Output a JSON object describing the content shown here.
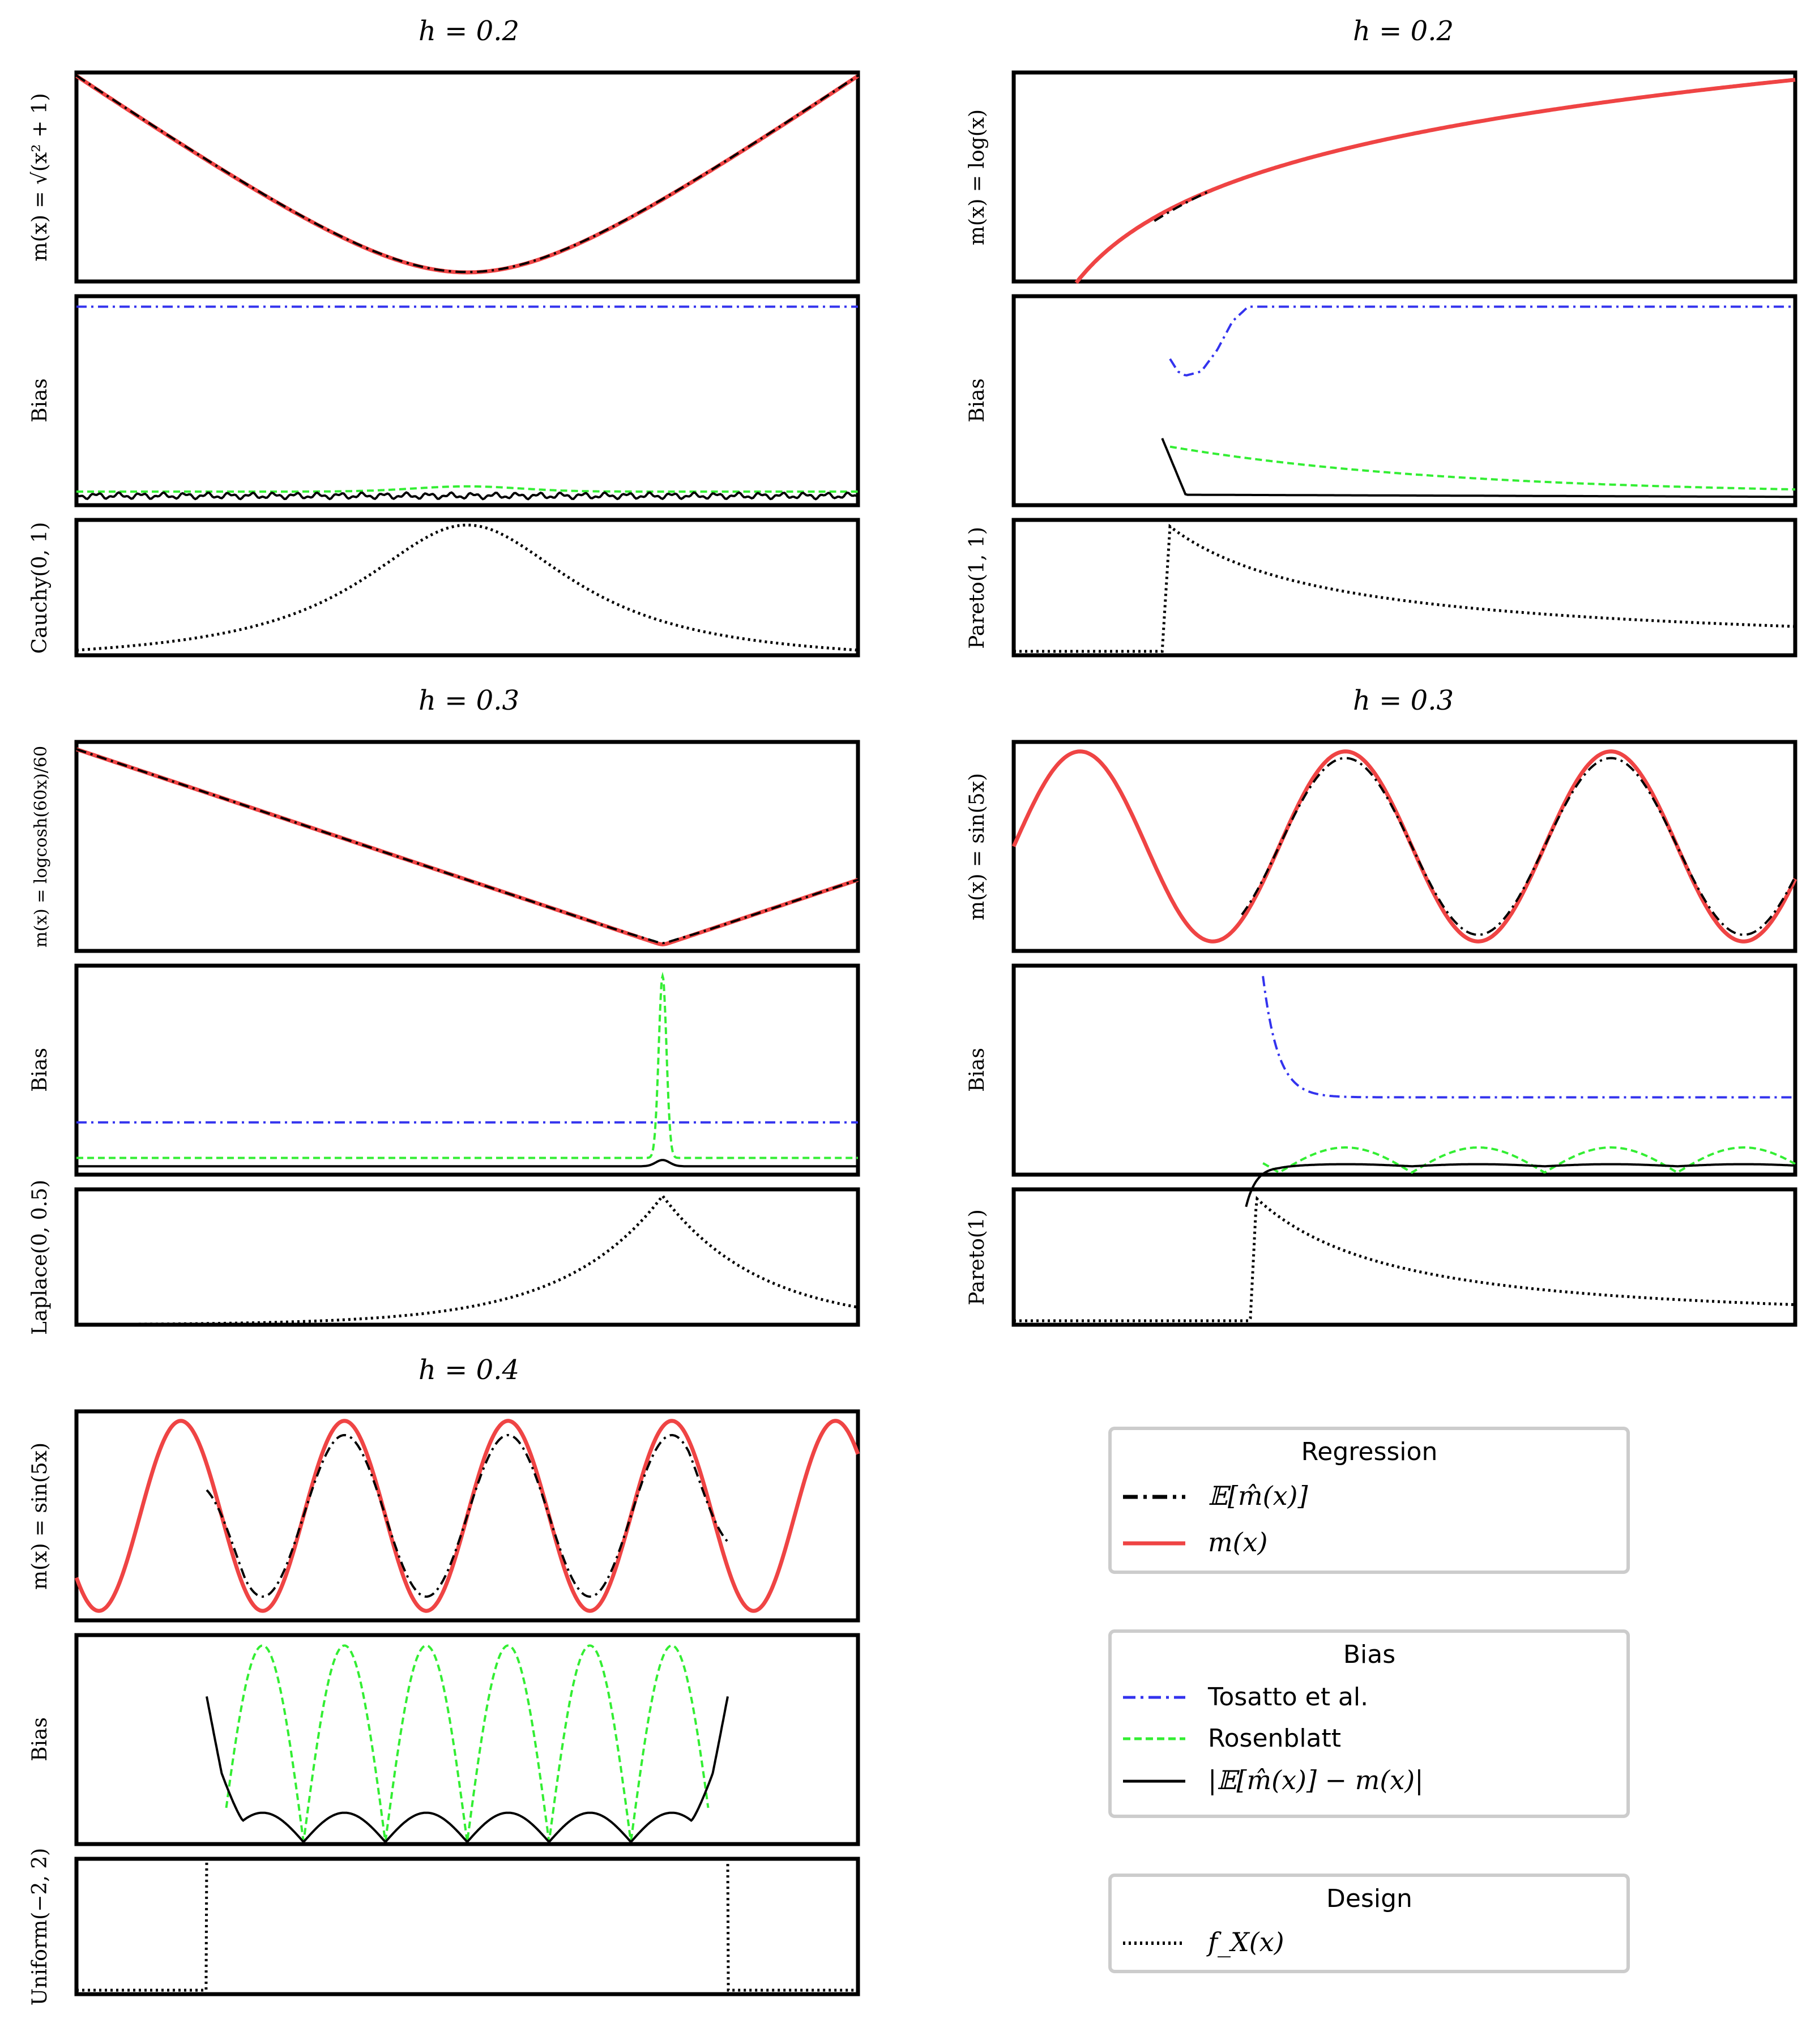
{
  "figure": {
    "description_note": "Grid of kernel regression bias plots"
  },
  "legends": [
    {
      "title": "Regression",
      "entries": [
        {
          "label": "𝔼[m̂(x)]",
          "style": "dashdot",
          "color": "#000000"
        },
        {
          "label": "m(x)",
          "style": "solid-red",
          "color": "#ef4444"
        }
      ]
    },
    {
      "title": "Bias",
      "entries": [
        {
          "label": "Tosatto et al.",
          "style": "dashdot-blue",
          "color": "#3333ee"
        },
        {
          "label": "Rosenblatt",
          "style": "dashed-green",
          "color": "#33ee33"
        },
        {
          "label": "|𝔼[m̂(x)] − m(x)|",
          "style": "solid-black",
          "color": "#000000"
        }
      ]
    },
    {
      "title": "Design",
      "entries": [
        {
          "label": "f_X(x)",
          "style": "dotted",
          "color": "#000000"
        }
      ]
    }
  ],
  "chart_data": [
    {
      "type": "line",
      "title": "h = 0.2",
      "ylabels": [
        "m(x) = √(x² + 1)",
        "Bias",
        "Cauchy(0, 1)"
      ],
      "xlim": [
        -3,
        3
      ],
      "regression": {
        "function": "sqrt(x^2+1)",
        "ylim": [
          0.9,
          3.2
        ],
        "estimate_note": "E[m̂(x)] overlaps m(x) over full range"
      },
      "bias": {
        "ylim": [
          0,
          1.0
        ],
        "tosatto": {
          "x": [
            -3,
            3
          ],
          "y": [
            0.95,
            0.95
          ]
        },
        "rosenblatt": {
          "x": [
            -3,
            -2,
            -1,
            0,
            1,
            2,
            3
          ],
          "y": [
            0.07,
            0.07,
            0.06,
            0.09,
            0.06,
            0.07,
            0.07
          ]
        },
        "abs_error": {
          "x": [
            -3,
            -2,
            -1,
            0,
            1,
            2,
            3
          ],
          "y": [
            0.04,
            0.05,
            0.04,
            0.05,
            0.04,
            0.04,
            0.05
          ]
        }
      },
      "design": {
        "density": "cauchy(0,1)",
        "xlim": [
          -3,
          3
        ]
      }
    },
    {
      "type": "line",
      "title": "h = 0.2",
      "ylabels": [
        "m(x) = log(x)",
        "Bias",
        "Pareto(1, 1)"
      ],
      "xlim": [
        0,
        5
      ],
      "regression": {
        "function": "log(x)",
        "ylim": [
          -0.9,
          1.7
        ],
        "estimate_range": [
          0.9,
          1.2
        ]
      },
      "bias": {
        "ylim": [
          0,
          1.0
        ],
        "tosatto": {
          "x": [
            1.0,
            1.05,
            1.1,
            1.2,
            1.3,
            1.4,
            1.5,
            5.0
          ],
          "y": [
            0.7,
            0.64,
            0.62,
            0.64,
            0.74,
            0.88,
            0.95,
            0.95
          ]
        },
        "rosenblatt": {
          "x": [
            1.0,
            1.5,
            2,
            2.5,
            3,
            4,
            5
          ],
          "y": [
            0.28,
            0.22,
            0.17,
            0.14,
            0.11,
            0.08,
            0.07
          ]
        },
        "abs_error": {
          "x": [
            0.95,
            1.1,
            5.0
          ],
          "y": [
            0.32,
            0.05,
            0.04
          ]
        }
      },
      "design": {
        "density": "pareto(1,1)",
        "xlim": [
          0,
          5
        ]
      }
    },
    {
      "type": "line",
      "title": "h = 0.3",
      "ylabels": [
        "m(x) = logcosh(60x)/60",
        "Bias",
        "Laplace(0, 0.5)"
      ],
      "xlim": [
        -3,
        1
      ],
      "regression": {
        "function": "logcosh(60x)/60",
        "ylim": [
          -0.1,
          3.1
        ]
      },
      "bias": {
        "ylim": [
          0,
          1.0
        ],
        "tosatto": {
          "x": [
            -3,
            1
          ],
          "y": [
            0.25,
            0.25
          ]
        },
        "rosenblatt": {
          "x": [
            -3,
            -0.1,
            -0.05,
            0,
            0.05,
            0.1,
            1
          ],
          "y": [
            0.08,
            0.08,
            0.3,
            0.95,
            0.3,
            0.08,
            0.08
          ]
        },
        "abs_error": {
          "x": [
            -3,
            -0.05,
            0,
            0.05,
            1
          ],
          "y": [
            0.04,
            0.04,
            0.07,
            0.04,
            0.04
          ]
        }
      },
      "design": {
        "density": "laplace(0,0.5)",
        "xlim": [
          -3,
          1
        ]
      }
    },
    {
      "type": "line",
      "title": "h = 0.3",
      "ylabels": [
        "m(x) = sin(5x)",
        "Bias",
        "Pareto(1)"
      ],
      "xlim": [
        0,
        3.7
      ],
      "regression": {
        "function": "sin(5x)",
        "ylim": [
          -1.1,
          1.1
        ],
        "estimate_range": [
          1.1,
          3.7
        ]
      },
      "bias": {
        "ylim": [
          0,
          1.0
        ],
        "tosatto": {
          "x": [
            1.2,
            1.3,
            1.4,
            1.6,
            3.7
          ],
          "y": [
            0.95,
            0.6,
            0.42,
            0.37,
            0.37
          ]
        },
        "rosenblatt": {
          "x_range": [
            1.2,
            3.7
          ],
          "amplitude": 0.12,
          "baseline": 0.05
        },
        "abs_error": {
          "x_range": [
            1.1,
            3.7
          ],
          "y_level": 0.04
        }
      },
      "design": {
        "density": "pareto(1)",
        "xlim": [
          0,
          3.7
        ]
      }
    },
    {
      "type": "line",
      "title": "h = 0.4",
      "ylabels": [
        "m(x) = sin(5x)",
        "Bias",
        "Uniform(−2, 2)"
      ],
      "xlim": [
        -3,
        3
      ],
      "regression": {
        "function": "sin(5x)",
        "ylim": [
          -1.1,
          1.1
        ],
        "estimate_range": [
          -2,
          2
        ]
      },
      "bias": {
        "ylim": [
          0,
          1.0
        ],
        "rosenblatt": {
          "x_range": [
            -2,
            2
          ],
          "peak": 0.95
        },
        "abs_error": {
          "x_range": [
            -2,
            2
          ],
          "peak": 0.14,
          "edge_value": 0.66
        }
      },
      "design": {
        "density": "uniform(-2,2)",
        "xlim": [
          -3,
          3
        ]
      }
    }
  ]
}
